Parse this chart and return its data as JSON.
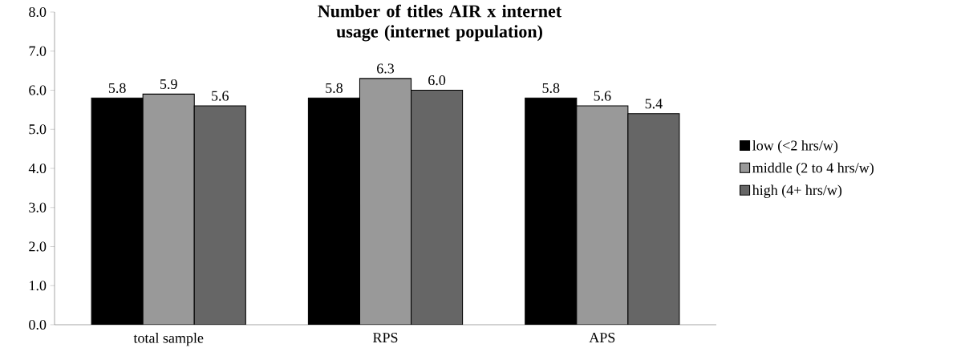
{
  "chart_data": {
    "type": "bar",
    "title": "Number of titles AIR x internet usage (internet population)",
    "categories": [
      "total sample",
      "RPS",
      "APS"
    ],
    "series": [
      {
        "name": "low (<2 hrs/w)",
        "color": "#000000",
        "values": [
          5.8,
          5.8,
          5.8
        ],
        "value_labels": [
          "5.8",
          "5.8",
          "5.8"
        ]
      },
      {
        "name": "middle (2 to 4 hrs/w)",
        "color": "#999999",
        "values": [
          5.9,
          6.3,
          5.6
        ],
        "value_labels": [
          "5.9",
          "6.3",
          "5.6"
        ]
      },
      {
        "name": "high (4+ hrs/w)",
        "color": "#666666",
        "values": [
          5.6,
          6.0,
          5.4
        ],
        "value_labels": [
          "5.6",
          "6.0",
          "5.4"
        ]
      }
    ],
    "ylim": [
      0,
      8
    ],
    "yticks": [
      {
        "value": 0,
        "label": "0.0"
      },
      {
        "value": 1,
        "label": "1.0"
      },
      {
        "value": 2,
        "label": "2.0"
      },
      {
        "value": 3,
        "label": "3.0"
      },
      {
        "value": 4,
        "label": "4.0"
      },
      {
        "value": 5,
        "label": "5.0"
      },
      {
        "value": 6,
        "label": "6.0"
      },
      {
        "value": 7,
        "label": "7.0"
      },
      {
        "value": 8,
        "label": "8.0"
      }
    ],
    "grid": false,
    "legend": "right"
  }
}
